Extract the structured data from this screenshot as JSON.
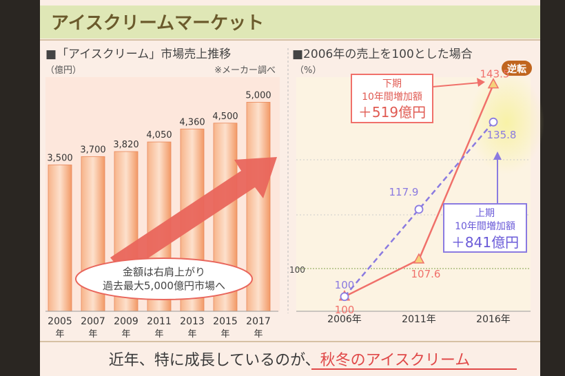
{
  "slide": {
    "title": "アイスクリームマーケット",
    "caption_prefix": "近年、特に成長しているのが、",
    "caption_highlight": "秋冬のアイスクリーム"
  },
  "colors": {
    "bar": "#f4a070",
    "arrow": "#e9665c",
    "lower_half": "#f0706a",
    "upper_half": "#8a7ae0",
    "title_bg": "#dfe7b6",
    "panel_bg": "#fbeadf",
    "dark_frame": "#2a2622"
  },
  "left_panel": {
    "heading": "■「アイスクリーム」市場売上推移",
    "unit": "（億円）",
    "source": "※メーカー調べ",
    "arrow_text_line1": "金額は右肩上がり",
    "arrow_text_line2": "過去最大5,000億円市場へ"
  },
  "right_panel": {
    "heading": "■2006年の売上を100とした場合",
    "unit": "（%）",
    "reversal_badge": "逆転",
    "y_tick_label": "100",
    "lower_box": {
      "line1": "下期",
      "line2": "10年間増加額",
      "line3": "＋519億円"
    },
    "upper_box": {
      "line1": "上期",
      "line2": "10年間増加額",
      "line3": "＋841億円"
    }
  },
  "chart_data": [
    {
      "type": "bar",
      "categories": [
        "2005年",
        "2007年",
        "2009年",
        "2011年",
        "2013年",
        "2015年",
        "2017年"
      ],
      "values": [
        3500,
        3700,
        3820,
        4050,
        4360,
        4500,
        5000
      ],
      "value_labels": [
        "3,500",
        "3,700",
        "3,820",
        "4,050",
        "4,360",
        "4,500",
        "5,000"
      ],
      "title": "■「アイスクリーム」市場売上推移",
      "ylabel": "（億円）",
      "ylim": [
        0,
        5600
      ]
    },
    {
      "type": "line",
      "categories": [
        "2006年",
        "2011年",
        "2016年"
      ],
      "series": [
        {
          "name": "下期",
          "values": [
            100,
            107.6,
            143.5
          ],
          "style": "solid",
          "marker": "triangle"
        },
        {
          "name": "上期",
          "values": [
            100,
            117.9,
            135.8
          ],
          "style": "dashed",
          "marker": "circle"
        }
      ],
      "title": "■2006年の売上を100とした場合",
      "ylabel": "（%）",
      "ylim": [
        97,
        145
      ]
    }
  ]
}
